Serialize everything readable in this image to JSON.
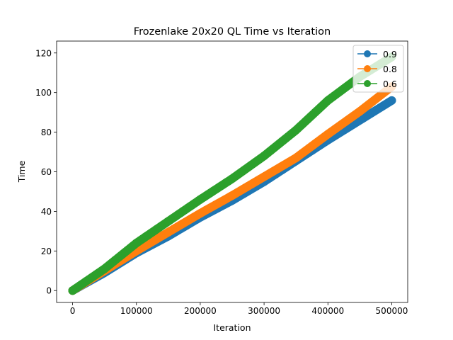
{
  "chart_data": {
    "type": "line",
    "title": "Frozenlake 20x20 QL Time vs Iteration",
    "xlabel": "Iteration",
    "ylabel": "Time",
    "xlim": [
      -25000,
      525000
    ],
    "ylim": [
      -6,
      126
    ],
    "xticks": [
      0,
      100000,
      200000,
      300000,
      400000,
      500000
    ],
    "xtick_labels": [
      "0",
      "100000",
      "200000",
      "300000",
      "400000",
      "500000"
    ],
    "yticks": [
      0,
      20,
      40,
      60,
      80,
      100,
      120
    ],
    "ytick_labels": [
      "0",
      "20",
      "40",
      "60",
      "80",
      "100",
      "120"
    ],
    "grid": false,
    "legend_position": "top-right",
    "series": [
      {
        "name": "0.9",
        "color": "#1f77b4",
        "x": [
          0,
          50000,
          100000,
          150000,
          200000,
          250000,
          300000,
          350000,
          400000,
          450000,
          500000
        ],
        "y": [
          0,
          9,
          19,
          27.5,
          37,
          45.5,
          55,
          65.5,
          76,
          86,
          96
        ]
      },
      {
        "name": "0.8",
        "color": "#ff7f0e",
        "x": [
          0,
          50000,
          100000,
          150000,
          200000,
          250000,
          300000,
          350000,
          400000,
          450000,
          500000
        ],
        "y": [
          0,
          10,
          20,
          29.5,
          39,
          48,
          57.5,
          67,
          79,
          90.5,
          103
        ]
      },
      {
        "name": "0.6",
        "color": "#2ca02c",
        "x": [
          0,
          50000,
          100000,
          150000,
          200000,
          250000,
          300000,
          350000,
          400000,
          450000,
          500000
        ],
        "y": [
          0,
          11,
          24,
          35,
          46,
          56.5,
          68,
          81,
          96,
          108,
          118
        ]
      }
    ]
  }
}
